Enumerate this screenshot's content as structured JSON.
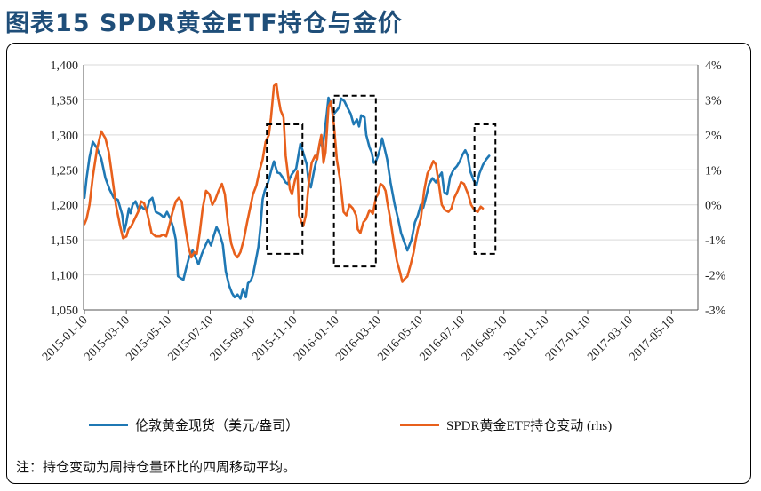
{
  "page": {
    "title": "图表15  SPDR黄金ETF持仓与金价",
    "note": "注：持仓变动为周持仓量环比的四周移动平均。"
  },
  "colors": {
    "blue": "#1f78b4",
    "orange": "#e8601c",
    "title": "#1f4e79"
  },
  "chart_data": {
    "type": "line",
    "x_tick_labels": [
      "2015-01-10",
      "2015-03-10",
      "2015-05-10",
      "2015-07-10",
      "2015-09-10",
      "2015-11-10",
      "2016-01-10",
      "2016-03-10",
      "2016-05-10",
      "2016-07-10",
      "2016-09-10",
      "2016-11-10",
      "2017-01-10",
      "2017-03-10",
      "2017-05-10"
    ],
    "y_left": {
      "ylim": [
        1050,
        1400
      ],
      "ticks": [
        1050,
        1100,
        1150,
        1200,
        1250,
        1300,
        1350,
        1400
      ],
      "tick_labels": [
        "1,050",
        "1,100",
        "1,150",
        "1,200",
        "1,250",
        "1,300",
        "1,350",
        "1,400"
      ]
    },
    "y_right": {
      "ylim": [
        -3,
        4
      ],
      "ticks": [
        -3,
        -2,
        -1,
        0,
        1,
        2,
        3,
        4
      ],
      "tick_labels": [
        "-3%",
        "-2%",
        "-1%",
        "0%",
        "1%",
        "2%",
        "3%",
        "4%"
      ]
    },
    "series": [
      {
        "name": "伦敦黄金现货（美元/盎司）",
        "axis": "left",
        "color": "#1f78b4",
        "points": [
          [
            0,
            1210
          ],
          [
            0.05,
            1238
          ],
          [
            0.12,
            1268
          ],
          [
            0.2,
            1290
          ],
          [
            0.3,
            1281
          ],
          [
            0.4,
            1266
          ],
          [
            0.5,
            1238
          ],
          [
            0.6,
            1222
          ],
          [
            0.7,
            1210
          ],
          [
            0.8,
            1207
          ],
          [
            0.9,
            1186
          ],
          [
            0.95,
            1162
          ],
          [
            1.0,
            1175
          ],
          [
            1.06,
            1195
          ],
          [
            1.1,
            1188
          ],
          [
            1.15,
            1200
          ],
          [
            1.22,
            1205
          ],
          [
            1.3,
            1192
          ],
          [
            1.35,
            1198
          ],
          [
            1.42,
            1194
          ],
          [
            1.5,
            1195
          ],
          [
            1.55,
            1206
          ],
          [
            1.62,
            1210
          ],
          [
            1.7,
            1190
          ],
          [
            1.8,
            1187
          ],
          [
            1.9,
            1182
          ],
          [
            1.97,
            1190
          ],
          [
            2.05,
            1180
          ],
          [
            2.12,
            1167
          ],
          [
            2.18,
            1150
          ],
          [
            2.23,
            1098
          ],
          [
            2.3,
            1095
          ],
          [
            2.36,
            1093
          ],
          [
            2.42,
            1108
          ],
          [
            2.5,
            1126
          ],
          [
            2.58,
            1135
          ],
          [
            2.65,
            1125
          ],
          [
            2.72,
            1115
          ],
          [
            2.8,
            1130
          ],
          [
            2.88,
            1141
          ],
          [
            2.95,
            1150
          ],
          [
            3.02,
            1142
          ],
          [
            3.08,
            1155
          ],
          [
            3.15,
            1168
          ],
          [
            3.22,
            1160
          ],
          [
            3.3,
            1143
          ],
          [
            3.37,
            1105
          ],
          [
            3.45,
            1085
          ],
          [
            3.52,
            1074
          ],
          [
            3.58,
            1068
          ],
          [
            3.65,
            1072
          ],
          [
            3.72,
            1066
          ],
          [
            3.78,
            1080
          ],
          [
            3.85,
            1068
          ],
          [
            3.9,
            1088
          ],
          [
            3.97,
            1092
          ],
          [
            4.02,
            1100
          ],
          [
            4.08,
            1118
          ],
          [
            4.15,
            1140
          ],
          [
            4.2,
            1170
          ],
          [
            4.25,
            1208
          ],
          [
            4.3,
            1220
          ],
          [
            4.38,
            1232
          ],
          [
            4.45,
            1248
          ],
          [
            4.52,
            1262
          ],
          [
            4.6,
            1246
          ],
          [
            4.66,
            1245
          ],
          [
            4.72,
            1240
          ],
          [
            4.8,
            1232
          ],
          [
            4.85,
            1230
          ],
          [
            4.9,
            1238
          ],
          [
            4.95,
            1244
          ],
          [
            5.0,
            1248
          ],
          [
            5.05,
            1252
          ],
          [
            5.1,
            1270
          ],
          [
            5.15,
            1287
          ],
          [
            5.2,
            1278
          ],
          [
            5.25,
            1268
          ],
          [
            5.3,
            1258
          ],
          [
            5.35,
            1232
          ],
          [
            5.4,
            1225
          ],
          [
            5.48,
            1250
          ],
          [
            5.55,
            1268
          ],
          [
            5.62,
            1290
          ],
          [
            5.68,
            1283
          ],
          [
            5.72,
            1300
          ],
          [
            5.78,
            1330
          ],
          [
            5.82,
            1353
          ],
          [
            5.88,
            1342
          ],
          [
            5.95,
            1330
          ],
          [
            6.02,
            1335
          ],
          [
            6.08,
            1340
          ],
          [
            6.12,
            1352
          ],
          [
            6.2,
            1348
          ],
          [
            6.28,
            1338
          ],
          [
            6.35,
            1330
          ],
          [
            6.42,
            1315
          ],
          [
            6.5,
            1322
          ],
          [
            6.55,
            1312
          ],
          [
            6.6,
            1328
          ],
          [
            6.68,
            1325
          ],
          [
            6.72,
            1300
          ],
          [
            6.8,
            1282
          ],
          [
            6.85,
            1275
          ],
          [
            6.9,
            1260
          ],
          [
            6.95,
            1262
          ],
          [
            7.0,
            1270
          ],
          [
            7.05,
            1280
          ],
          [
            7.1,
            1295
          ],
          [
            7.15,
            1283
          ],
          [
            7.22,
            1265
          ],
          [
            7.3,
            1232
          ],
          [
            7.4,
            1200
          ],
          [
            7.48,
            1180
          ],
          [
            7.55,
            1160
          ],
          [
            7.62,
            1148
          ],
          [
            7.7,
            1135
          ],
          [
            7.8,
            1150
          ],
          [
            7.88,
            1175
          ],
          [
            7.95,
            1185
          ],
          [
            8.02,
            1200
          ],
          [
            8.08,
            1196
          ],
          [
            8.15,
            1212
          ],
          [
            8.22,
            1230
          ],
          [
            8.3,
            1238
          ],
          [
            8.38,
            1232
          ],
          [
            8.45,
            1240
          ],
          [
            8.52,
            1246
          ],
          [
            8.58,
            1218
          ],
          [
            8.65,
            1215
          ],
          [
            8.72,
            1240
          ],
          [
            8.8,
            1250
          ],
          [
            8.88,
            1255
          ],
          [
            8.95,
            1262
          ],
          [
            9.02,
            1272
          ],
          [
            9.08,
            1278
          ],
          [
            9.14,
            1270
          ],
          [
            9.2,
            1248
          ],
          [
            9.28,
            1235
          ],
          [
            9.35,
            1228
          ],
          [
            9.42,
            1245
          ],
          [
            9.5,
            1257
          ],
          [
            9.58,
            1265
          ],
          [
            9.65,
            1270
          ]
        ]
      },
      {
        "name": "SPDR黄金ETF持仓变动 (rhs)",
        "axis": "right",
        "color": "#e8601c",
        "points": [
          [
            0,
            -0.55
          ],
          [
            0.05,
            -0.4
          ],
          [
            0.12,
            0.0
          ],
          [
            0.2,
            0.8
          ],
          [
            0.3,
            1.6
          ],
          [
            0.4,
            2.1
          ],
          [
            0.5,
            1.9
          ],
          [
            0.58,
            1.5
          ],
          [
            0.65,
            0.9
          ],
          [
            0.75,
            0.0
          ],
          [
            0.85,
            -0.6
          ],
          [
            0.92,
            -0.95
          ],
          [
            1.0,
            -0.9
          ],
          [
            1.05,
            -0.7
          ],
          [
            1.12,
            -0.6
          ],
          [
            1.2,
            -0.4
          ],
          [
            1.28,
            -0.2
          ],
          [
            1.35,
            0.1
          ],
          [
            1.42,
            0.05
          ],
          [
            1.5,
            -0.25
          ],
          [
            1.6,
            -0.8
          ],
          [
            1.7,
            -0.9
          ],
          [
            1.8,
            -0.9
          ],
          [
            1.88,
            -0.85
          ],
          [
            1.95,
            -0.9
          ],
          [
            2.02,
            -0.6
          ],
          [
            2.1,
            -0.2
          ],
          [
            2.18,
            0.1
          ],
          [
            2.25,
            0.2
          ],
          [
            2.32,
            0.1
          ],
          [
            2.4,
            -0.6
          ],
          [
            2.48,
            -1.2
          ],
          [
            2.55,
            -1.5
          ],
          [
            2.62,
            -1.35
          ],
          [
            2.68,
            -1.4
          ],
          [
            2.75,
            -0.8
          ],
          [
            2.82,
            -0.1
          ],
          [
            2.9,
            0.4
          ],
          [
            2.98,
            0.3
          ],
          [
            3.05,
            0.0
          ],
          [
            3.12,
            0.15
          ],
          [
            3.2,
            0.4
          ],
          [
            3.28,
            0.6
          ],
          [
            3.35,
            0.3
          ],
          [
            3.42,
            -0.5
          ],
          [
            3.5,
            -1.1
          ],
          [
            3.58,
            -1.4
          ],
          [
            3.65,
            -1.5
          ],
          [
            3.72,
            -1.35
          ],
          [
            3.8,
            -1.0
          ],
          [
            3.88,
            -0.5
          ],
          [
            3.95,
            -0.1
          ],
          [
            4.02,
            0.3
          ],
          [
            4.1,
            0.55
          ],
          [
            4.18,
            1.0
          ],
          [
            4.25,
            1.3
          ],
          [
            4.32,
            1.8
          ],
          [
            4.4,
            2.0
          ],
          [
            4.45,
            2.5
          ],
          [
            4.52,
            3.4
          ],
          [
            4.58,
            3.45
          ],
          [
            4.62,
            3.1
          ],
          [
            4.68,
            2.7
          ],
          [
            4.75,
            2.5
          ],
          [
            4.8,
            1.4
          ],
          [
            4.85,
            0.9
          ],
          [
            4.9,
            0.45
          ],
          [
            4.95,
            0.3
          ],
          [
            5.02,
            0.7
          ],
          [
            5.08,
            0.95
          ],
          [
            5.12,
            -0.3
          ],
          [
            5.18,
            -0.5
          ],
          [
            5.22,
            -0.6
          ],
          [
            5.28,
            -0.3
          ],
          [
            5.35,
            0.6
          ],
          [
            5.42,
            1.2
          ],
          [
            5.5,
            1.4
          ],
          [
            5.55,
            1.3
          ],
          [
            5.6,
            1.7
          ],
          [
            5.65,
            2.0
          ],
          [
            5.7,
            1.2
          ],
          [
            5.75,
            1.5
          ],
          [
            5.82,
            2.8
          ],
          [
            5.88,
            2.95
          ],
          [
            5.95,
            2.3
          ],
          [
            6.02,
            1.3
          ],
          [
            6.1,
            0.7
          ],
          [
            6.18,
            -0.2
          ],
          [
            6.25,
            -0.3
          ],
          [
            6.32,
            0.0
          ],
          [
            6.4,
            -0.1
          ],
          [
            6.48,
            -0.3
          ],
          [
            6.52,
            -0.7
          ],
          [
            6.58,
            -0.8
          ],
          [
            6.65,
            -0.5
          ],
          [
            6.72,
            -0.4
          ],
          [
            6.8,
            -0.15
          ],
          [
            6.88,
            -0.25
          ],
          [
            6.95,
            0.2
          ],
          [
            7.0,
            0.3
          ],
          [
            7.06,
            0.6
          ],
          [
            7.12,
            0.55
          ],
          [
            7.18,
            0.4
          ],
          [
            7.22,
            0.1
          ],
          [
            7.3,
            -0.45
          ],
          [
            7.38,
            -1.1
          ],
          [
            7.45,
            -1.6
          ],
          [
            7.52,
            -1.9
          ],
          [
            7.58,
            -2.2
          ],
          [
            7.65,
            -2.1
          ],
          [
            7.7,
            -2.05
          ],
          [
            7.78,
            -1.7
          ],
          [
            7.85,
            -1.35
          ],
          [
            7.9,
            -1.0
          ],
          [
            7.95,
            -0.7
          ],
          [
            8.02,
            -0.4
          ],
          [
            8.1,
            0.4
          ],
          [
            8.18,
            0.9
          ],
          [
            8.25,
            1.05
          ],
          [
            8.32,
            1.25
          ],
          [
            8.38,
            1.15
          ],
          [
            8.45,
            0.6
          ],
          [
            8.52,
            0.0
          ],
          [
            8.6,
            -0.15
          ],
          [
            8.68,
            -0.2
          ],
          [
            8.75,
            -0.1
          ],
          [
            8.82,
            0.2
          ],
          [
            8.9,
            0.4
          ],
          [
            8.98,
            0.65
          ],
          [
            9.05,
            0.6
          ],
          [
            9.1,
            0.45
          ],
          [
            9.15,
            0.3
          ],
          [
            9.22,
            0.0
          ],
          [
            9.3,
            -0.15
          ],
          [
            9.38,
            -0.2
          ],
          [
            9.45,
            -0.05
          ],
          [
            9.5,
            -0.1
          ]
        ]
      }
    ],
    "highlight_boxes": [
      {
        "x": [
          4.35,
          5.2
        ],
        "y_left": [
          1130,
          1315
        ]
      },
      {
        "x": [
          5.95,
          6.95
        ],
        "y_left": [
          1112,
          1356
        ]
      },
      {
        "x": [
          9.3,
          9.8
        ],
        "y_left": [
          1130,
          1315
        ]
      }
    ],
    "legend": [
      "伦敦黄金现货（美元/盎司）",
      "SPDR黄金ETF持仓变动 (rhs)"
    ],
    "legend_position": "bottom"
  }
}
